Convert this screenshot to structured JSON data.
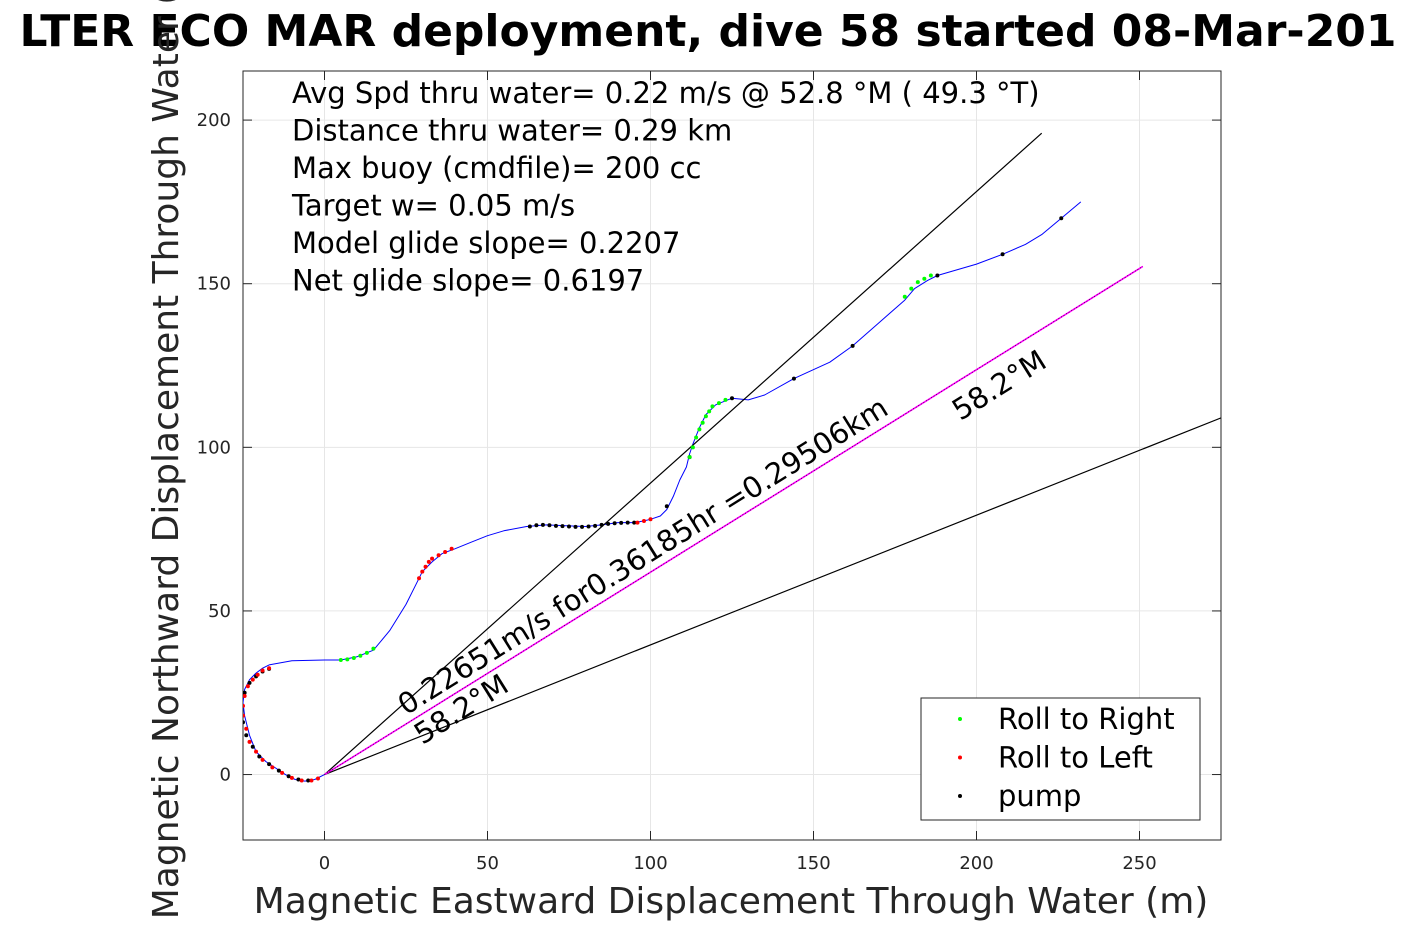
{
  "chart_data": {
    "type": "line",
    "title": "LTER ECO MAR deployment, dive 58 started 08-Mar-201",
    "xlabel": "Magnetic Eastward Displacement Through Water (m)",
    "ylabel": "Magnetic Northward Displacement Through Water (",
    "xlim": [
      -25,
      275
    ],
    "ylim": [
      -20,
      215
    ],
    "xticks": [
      0,
      50,
      100,
      150,
      200,
      250
    ],
    "yticks": [
      0,
      50,
      100,
      150,
      200
    ],
    "grid": true,
    "legend_position": "bottom-right",
    "colors": {
      "track": "#0000ff",
      "roll_right": "#00ff00",
      "roll_left": "#ff0000",
      "pump": "#000000",
      "glide_line": "#ff00ff",
      "reference_lines": "#000000"
    },
    "stats_text": [
      "Avg Spd thru water=  0.22 m/s @  52.8 °M ( 49.3 °T)",
      "Distance thru water=  0.29 km",
      "Max buoy (cmdfile)= 200 cc",
      "Target w= 0.05 m/s",
      "Model glide slope= 0.2207",
      "Net glide slope= 0.6197"
    ],
    "annotations": [
      {
        "text": "0.22651m/s for0.36185hr =0.29506km",
        "x": 25,
        "y": 18,
        "angle_deg": 32
      },
      {
        "text": "58.2°M",
        "x": 30,
        "y": 9,
        "angle_deg": 32
      },
      {
        "text": "58.2°M",
        "x": 195,
        "y": 108,
        "angle_deg": 32
      }
    ],
    "legend": [
      {
        "label": "Roll to Right",
        "color": "#00ff00"
      },
      {
        "label": "Roll to Left",
        "color": "#ff0000"
      },
      {
        "label": "pump",
        "color": "#000000"
      }
    ],
    "series": [
      {
        "name": "track",
        "kind": "line",
        "x": [
          0,
          -3,
          -6,
          -9,
          -12,
          -15,
          -18,
          -21,
          -23,
          -24.5,
          -25,
          -24.5,
          -23,
          -21,
          -19,
          -17,
          -10,
          0,
          5,
          10,
          15,
          20,
          25,
          28,
          30,
          33,
          36,
          40,
          45,
          50,
          55,
          62,
          68,
          75,
          80,
          85,
          90,
          95,
          98,
          100,
          103,
          105,
          107,
          109,
          111,
          112,
          113,
          115,
          117,
          120,
          125,
          130,
          135,
          144,
          155,
          162,
          170,
          178,
          181,
          185,
          188,
          200,
          208,
          215,
          220,
          226,
          232
        ],
        "y": [
          0,
          -1.5,
          -2,
          -1.5,
          0,
          2,
          4,
          7,
          12,
          18,
          22,
          26,
          29,
          31,
          32.5,
          33.5,
          34.8,
          35,
          35,
          36,
          38,
          44,
          52,
          58,
          62,
          65,
          67.5,
          69,
          71,
          73,
          74.5,
          75.8,
          76.3,
          76,
          75.8,
          76.3,
          77,
          77,
          77.5,
          78,
          79,
          81,
          85,
          90,
          94,
          98,
          101,
          106,
          110,
          113,
          115,
          114.5,
          116,
          121,
          126,
          131,
          138,
          145,
          148.5,
          151,
          152.5,
          156,
          159,
          162,
          165,
          170,
          175
        ]
      },
      {
        "name": "Roll to Right",
        "kind": "points",
        "x": [
          5,
          7,
          9,
          11,
          13,
          15,
          112,
          113,
          114,
          115,
          116,
          117,
          118,
          119,
          121,
          123,
          178,
          180,
          182,
          184,
          186
        ],
        "y": [
          35,
          35.2,
          35.6,
          36.3,
          37.2,
          38.5,
          97,
          100,
          103,
          105.5,
          107.5,
          109.5,
          111,
          112.5,
          113.5,
          114.5,
          146,
          148.5,
          150.5,
          151.5,
          152.5
        ]
      },
      {
        "name": "Roll to Left",
        "kind": "points",
        "x": [
          -2,
          -4,
          -7,
          -10,
          -13,
          -16,
          -19,
          -21,
          -23,
          -24,
          -25,
          -25,
          -24.5,
          -23.5,
          -22,
          -20.5,
          -19,
          -17,
          29,
          30,
          31,
          32,
          33,
          35,
          37,
          39,
          96,
          98,
          100
        ],
        "y": [
          -1.2,
          -1.8,
          -1.8,
          -1,
          0.5,
          2.2,
          4.5,
          7,
          10,
          14,
          18,
          21,
          24,
          27,
          29,
          30.5,
          31.8,
          32.5,
          60,
          62,
          63.5,
          65,
          66,
          67,
          68,
          69,
          77,
          77.5,
          78
        ]
      },
      {
        "name": "pump",
        "kind": "points",
        "x": [
          -5,
          -8,
          -11,
          -14,
          -17,
          -20,
          -22,
          -24,
          -25,
          -24.5,
          -23,
          -21,
          -19,
          -17,
          63,
          65,
          67,
          69,
          71,
          73,
          75,
          77,
          79,
          81,
          83,
          85,
          87,
          89,
          91,
          93,
          95,
          105,
          112,
          125,
          144,
          162,
          188,
          208,
          226
        ],
        "y": [
          -1.8,
          -1.5,
          -0.5,
          1.2,
          3.2,
          5.5,
          8.5,
          12,
          16,
          25,
          28,
          30,
          31.5,
          32.3,
          75.8,
          76.2,
          76.3,
          76.2,
          76,
          75.9,
          75.8,
          75.7,
          75.7,
          75.8,
          76,
          76.3,
          76.6,
          76.8,
          76.9,
          77,
          77,
          82,
          97,
          115,
          121,
          131,
          152.5,
          159,
          170
        ]
      },
      {
        "name": "reference_upper",
        "kind": "line",
        "x": [
          0,
          220
        ],
        "y": [
          0,
          196
        ]
      },
      {
        "name": "reference_lower",
        "kind": "line",
        "x": [
          0,
          275
        ],
        "y": [
          0,
          109
        ]
      },
      {
        "name": "net_glide",
        "kind": "line",
        "x": [
          0,
          251
        ],
        "y": [
          0,
          155.3
        ]
      }
    ]
  }
}
